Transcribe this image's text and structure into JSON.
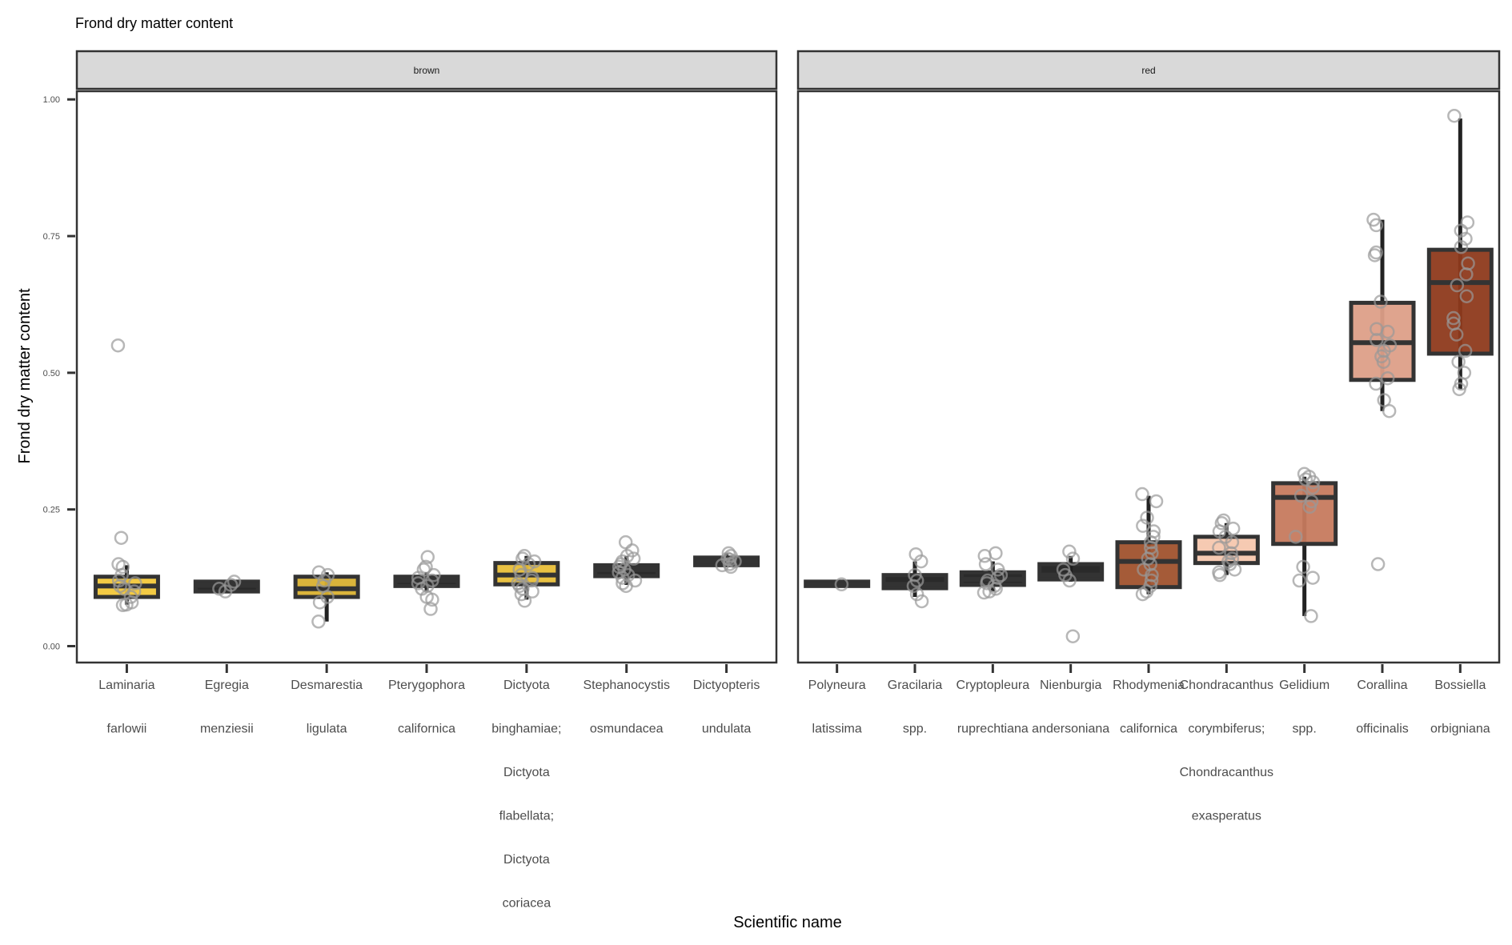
{
  "chart_data": {
    "type": "box",
    "title": "Frond dry matter content",
    "xlabel": "Scientific name",
    "ylabel": "Frond dry matter content",
    "ylim": [
      -0.03,
      1.015
    ],
    "yticks": [
      "0.00",
      "0.25",
      "0.50",
      "0.75",
      "1.00"
    ],
    "ytick_values": [
      0.0,
      0.25,
      0.5,
      0.75,
      1.0
    ],
    "grid": false,
    "legend": "none",
    "panels": [
      {
        "name": "brown",
        "species": [
          {
            "label": [
              "Laminaria",
              "farlowii"
            ],
            "q1": 0.09,
            "median": 0.11,
            "q3": 0.127,
            "lo": 0.076,
            "hi": 0.148,
            "fill": "#f2c73a",
            "points": [
              0.55,
              0.198,
              0.15,
              0.145,
              0.13,
              0.12,
              0.115,
              0.11,
              0.105,
              0.1,
              0.09,
              0.08,
              0.076,
              0.075
            ]
          },
          {
            "label": [
              "Egregia",
              "menziesii"
            ],
            "q1": 0.1,
            "median": 0.111,
            "q3": 0.118,
            "lo": 0.1,
            "hi": 0.118,
            "fill": "#1f1f1f",
            "points": [
              0.118,
              0.112,
              0.105,
              0.1
            ]
          },
          {
            "label": [
              "Desmarestia",
              "ligulata"
            ],
            "q1": 0.09,
            "median": 0.105,
            "q3": 0.127,
            "lo": 0.045,
            "hi": 0.135,
            "fill": "#d8b030",
            "points": [
              0.135,
              0.13,
              0.12,
              0.11,
              0.09,
              0.08,
              0.045
            ]
          },
          {
            "label": [
              "Pterygophora",
              "californica"
            ],
            "q1": 0.11,
            "median": 0.12,
            "q3": 0.127,
            "lo": 0.1,
            "hi": 0.135,
            "fill": "#1f1f1f",
            "points": [
              0.163,
              0.145,
              0.14,
              0.13,
              0.125,
              0.12,
              0.115,
              0.11,
              0.105,
              0.09,
              0.085,
              0.068
            ]
          },
          {
            "label": [
              "Dictyota",
              "binghamiae;",
              "Dictyota",
              "flabellata;",
              "Dictyota",
              "coriacea"
            ],
            "q1": 0.113,
            "median": 0.13,
            "q3": 0.152,
            "lo": 0.085,
            "hi": 0.165,
            "fill": "#e8be38",
            "points": [
              0.165,
              0.16,
              0.155,
              0.15,
              0.14,
              0.13,
              0.125,
              0.12,
              0.115,
              0.11,
              0.105,
              0.1,
              0.095,
              0.083
            ]
          },
          {
            "label": [
              "Stephanocystis",
              "osmundacea"
            ],
            "q1": 0.128,
            "median": 0.14,
            "q3": 0.148,
            "lo": 0.112,
            "hi": 0.165,
            "fill": "#1f1f1f",
            "points": [
              0.19,
              0.175,
              0.165,
              0.16,
              0.155,
              0.15,
              0.145,
              0.14,
              0.135,
              0.13,
              0.125,
              0.12,
              0.115,
              0.11
            ]
          },
          {
            "label": [
              "Dictyopteris",
              "undulata"
            ],
            "q1": 0.148,
            "median": 0.155,
            "q3": 0.162,
            "lo": 0.145,
            "hi": 0.17,
            "fill": "#1f1f1f",
            "points": [
              0.17,
              0.165,
              0.16,
              0.158,
              0.155,
              0.15,
              0.148,
              0.145
            ]
          }
        ]
      },
      {
        "name": "red",
        "species": [
          {
            "label": [
              "Polyneura",
              "latissima"
            ],
            "q1": 0.11,
            "median": 0.113,
            "q3": 0.118,
            "lo": 0.11,
            "hi": 0.118,
            "fill": "#1f1f1f",
            "points": [
              0.113
            ]
          },
          {
            "label": [
              "Gracilaria",
              "spp."
            ],
            "q1": 0.106,
            "median": 0.113,
            "q3": 0.13,
            "lo": 0.09,
            "hi": 0.155,
            "fill": "#1f1f1f",
            "points": [
              0.168,
              0.155,
              0.13,
              0.12,
              0.11,
              0.095,
              0.082
            ]
          },
          {
            "label": [
              "Cryptopleura",
              "ruprechtiana"
            ],
            "q1": 0.112,
            "median": 0.122,
            "q3": 0.135,
            "lo": 0.1,
            "hi": 0.155,
            "fill": "#1f1f1f",
            "points": [
              0.17,
              0.165,
              0.15,
              0.14,
              0.13,
              0.125,
              0.12,
              0.115,
              0.11,
              0.105,
              0.1,
              0.098
            ]
          },
          {
            "label": [
              "Nienburgia",
              "andersoniana"
            ],
            "q1": 0.122,
            "median": 0.13,
            "q3": 0.15,
            "lo": 0.118,
            "hi": 0.165,
            "fill": "#1f1f1f",
            "points": [
              0.173,
              0.16,
              0.14,
              0.13,
              0.12,
              0.018
            ]
          },
          {
            "label": [
              "Rhodymenia",
              "californica"
            ],
            "q1": 0.108,
            "median": 0.155,
            "q3": 0.19,
            "lo": 0.095,
            "hi": 0.275,
            "fill": "#a0522d",
            "points": [
              0.278,
              0.265,
              0.235,
              0.22,
              0.21,
              0.2,
              0.19,
              0.18,
              0.17,
              0.16,
              0.15,
              0.14,
              0.13,
              0.12,
              0.11,
              0.1,
              0.095
            ]
          },
          {
            "label": [
              "Chondracanthus",
              "corymbiferus;",
              "Chondracanthus",
              "exasperatus"
            ],
            "q1": 0.152,
            "median": 0.17,
            "q3": 0.2,
            "lo": 0.13,
            "hi": 0.225,
            "fill": "#f6c7ae",
            "points": [
              0.23,
              0.225,
              0.215,
              0.21,
              0.2,
              0.19,
              0.18,
              0.17,
              0.16,
              0.155,
              0.15,
              0.14,
              0.135,
              0.13
            ]
          },
          {
            "label": [
              "Gelidium",
              "spp."
            ],
            "q1": 0.187,
            "median": 0.272,
            "q3": 0.298,
            "lo": 0.055,
            "hi": 0.31,
            "fill": "#c67a5e",
            "points": [
              0.315,
              0.31,
              0.305,
              0.3,
              0.29,
              0.275,
              0.265,
              0.255,
              0.2,
              0.145,
              0.125,
              0.12,
              0.055
            ]
          },
          {
            "label": [
              "Corallina",
              "officinalis"
            ],
            "q1": 0.487,
            "median": 0.555,
            "q3": 0.628,
            "lo": 0.43,
            "hi": 0.78,
            "fill": "#dd9f88",
            "points": [
              0.78,
              0.77,
              0.72,
              0.715,
              0.63,
              0.58,
              0.575,
              0.56,
              0.55,
              0.54,
              0.53,
              0.52,
              0.49,
              0.48,
              0.45,
              0.43,
              0.15
            ]
          },
          {
            "label": [
              "Bossiella",
              "orbigniana"
            ],
            "q1": 0.535,
            "median": 0.665,
            "q3": 0.725,
            "lo": 0.47,
            "hi": 0.965,
            "fill": "#8e3a1c",
            "points": [
              0.97,
              0.775,
              0.76,
              0.745,
              0.73,
              0.7,
              0.68,
              0.66,
              0.64,
              0.6,
              0.59,
              0.57,
              0.54,
              0.52,
              0.5,
              0.48,
              0.47
            ]
          }
        ]
      }
    ]
  }
}
